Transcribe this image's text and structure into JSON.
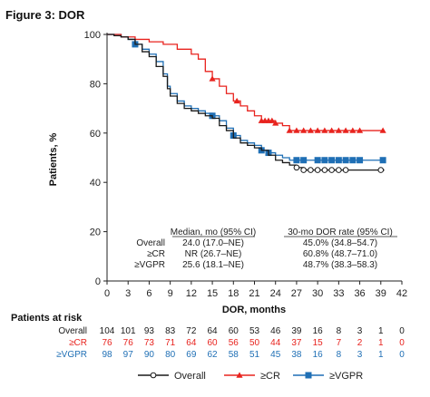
{
  "title": "Figure 3: DOR",
  "colors": {
    "overall": "#1a1a1a",
    "cr": "#e8231e",
    "vgpr": "#1f6fb5",
    "grid_axis": "#222222"
  },
  "chart_data": {
    "type": "line",
    "title": "Figure 3: DOR",
    "xlabel": "DOR, months",
    "ylabel": "Patients, %",
    "xlim": [
      0,
      42
    ],
    "ylim": [
      0,
      100
    ],
    "xticks": [
      0,
      3,
      6,
      9,
      12,
      15,
      18,
      21,
      24,
      27,
      30,
      33,
      36,
      39,
      42
    ],
    "yticks": [
      0,
      20,
      40,
      60,
      80,
      100
    ],
    "grid": false,
    "series": [
      {
        "name": "Overall",
        "marker": "open-circle",
        "points": [
          [
            0,
            100
          ],
          [
            1,
            99.5
          ],
          [
            2,
            99
          ],
          [
            3,
            98
          ],
          [
            4,
            96
          ],
          [
            5,
            93
          ],
          [
            6,
            91
          ],
          [
            7,
            87
          ],
          [
            8,
            83
          ],
          [
            8.6,
            78
          ],
          [
            9,
            75
          ],
          [
            10,
            72
          ],
          [
            11,
            70
          ],
          [
            12,
            69
          ],
          [
            13,
            68
          ],
          [
            14,
            67
          ],
          [
            15,
            66
          ],
          [
            16,
            63
          ],
          [
            17,
            61
          ],
          [
            18,
            58
          ],
          [
            19,
            56
          ],
          [
            20,
            55
          ],
          [
            21,
            54
          ],
          [
            22,
            53
          ],
          [
            23,
            51
          ],
          [
            24,
            49
          ],
          [
            25,
            48
          ],
          [
            26,
            47
          ],
          [
            27,
            46
          ],
          [
            28,
            45
          ],
          [
            29,
            45
          ],
          [
            30,
            45
          ],
          [
            31,
            45
          ],
          [
            32,
            45
          ],
          [
            33,
            45
          ],
          [
            34,
            45
          ],
          [
            35,
            45
          ],
          [
            36,
            45
          ],
          [
            37,
            45
          ],
          [
            38,
            45
          ],
          [
            39,
            45
          ],
          [
            39.5,
            45
          ]
        ],
        "markers_x": [
          27,
          28,
          29,
          30,
          31,
          32,
          33,
          34,
          39
        ]
      },
      {
        "name": "≥CR",
        "marker": "filled-triangle",
        "points": [
          [
            0,
            100
          ],
          [
            2,
            99
          ],
          [
            4,
            98
          ],
          [
            6,
            97
          ],
          [
            8,
            96
          ],
          [
            10,
            94
          ],
          [
            12,
            92
          ],
          [
            13,
            90
          ],
          [
            14,
            85
          ],
          [
            15,
            82
          ],
          [
            16,
            79
          ],
          [
            17,
            76
          ],
          [
            18,
            73
          ],
          [
            19,
            71
          ],
          [
            20,
            69
          ],
          [
            21,
            67
          ],
          [
            22,
            65
          ],
          [
            24,
            64
          ],
          [
            25,
            63
          ],
          [
            26,
            61
          ],
          [
            27,
            61
          ],
          [
            30,
            61
          ],
          [
            33,
            61
          ],
          [
            36,
            61
          ],
          [
            39,
            61
          ],
          [
            39.5,
            61
          ]
        ],
        "markers_x": [
          15,
          18.5,
          22,
          22.5,
          23,
          23.5,
          24,
          26,
          27,
          28,
          29,
          30,
          31,
          32,
          33,
          34,
          35,
          36,
          39.3
        ]
      },
      {
        "name": "≥VGPR",
        "marker": "filled-square",
        "points": [
          [
            0,
            100
          ],
          [
            2,
            99
          ],
          [
            3,
            98
          ],
          [
            4,
            96
          ],
          [
            5,
            94
          ],
          [
            6,
            92
          ],
          [
            7,
            89
          ],
          [
            8,
            84
          ],
          [
            8.6,
            79
          ],
          [
            9,
            76
          ],
          [
            10,
            73
          ],
          [
            11,
            71
          ],
          [
            12,
            70
          ],
          [
            13,
            69
          ],
          [
            14,
            68
          ],
          [
            15,
            67
          ],
          [
            16,
            65
          ],
          [
            17,
            62
          ],
          [
            18,
            59
          ],
          [
            19,
            57
          ],
          [
            20,
            56
          ],
          [
            21,
            55
          ],
          [
            22,
            53
          ],
          [
            23,
            52
          ],
          [
            24,
            51
          ],
          [
            25,
            50
          ],
          [
            26,
            49
          ],
          [
            27,
            49
          ],
          [
            30,
            49
          ],
          [
            33,
            49
          ],
          [
            36,
            49
          ],
          [
            39,
            49
          ],
          [
            39.5,
            49
          ]
        ],
        "markers_x": [
          4,
          15,
          18,
          22,
          23,
          27,
          28,
          30,
          31,
          32,
          33,
          34,
          35,
          36,
          39.3
        ]
      }
    ],
    "summary_table": {
      "headers": [
        "",
        "Median, mo (95% CI)",
        "30-mo DOR rate (95% CI)"
      ],
      "rows": [
        {
          "label": "Overall",
          "median": "24.0 (17.0–NE)",
          "rate": "45.0% (34.8–54.7)",
          "color_key": "overall"
        },
        {
          "label": "≥CR",
          "median": "NR (26.7–NE)",
          "rate": "60.8% (48.7–71.0)",
          "color_key": "cr"
        },
        {
          "label": "≥VGPR",
          "median": "25.6 (18.1–NE)",
          "rate": "48.7% (38.3–58.3)",
          "color_key": "vgpr"
        }
      ]
    },
    "at_risk": {
      "label": "Patients at risk",
      "rows": [
        {
          "label": "Overall",
          "color_key": "overall",
          "values": [
            104,
            101,
            93,
            83,
            72,
            64,
            60,
            53,
            46,
            39,
            16,
            8,
            3,
            1,
            0
          ]
        },
        {
          "label": "≥CR",
          "color_key": "cr",
          "values": [
            76,
            76,
            73,
            71,
            64,
            60,
            56,
            50,
            44,
            37,
            15,
            7,
            2,
            1,
            0
          ]
        },
        {
          "label": "≥VGPR",
          "color_key": "vgpr",
          "values": [
            98,
            97,
            90,
            80,
            69,
            62,
            58,
            51,
            45,
            38,
            16,
            8,
            3,
            1,
            0
          ]
        }
      ]
    },
    "legend": {
      "placement": "bottom",
      "items": [
        {
          "label": "Overall",
          "color_key": "overall",
          "marker": "open-circle"
        },
        {
          "label": "≥CR",
          "color_key": "cr",
          "marker": "filled-triangle"
        },
        {
          "label": "≥VGPR",
          "color_key": "vgpr",
          "marker": "filled-square"
        }
      ]
    }
  }
}
